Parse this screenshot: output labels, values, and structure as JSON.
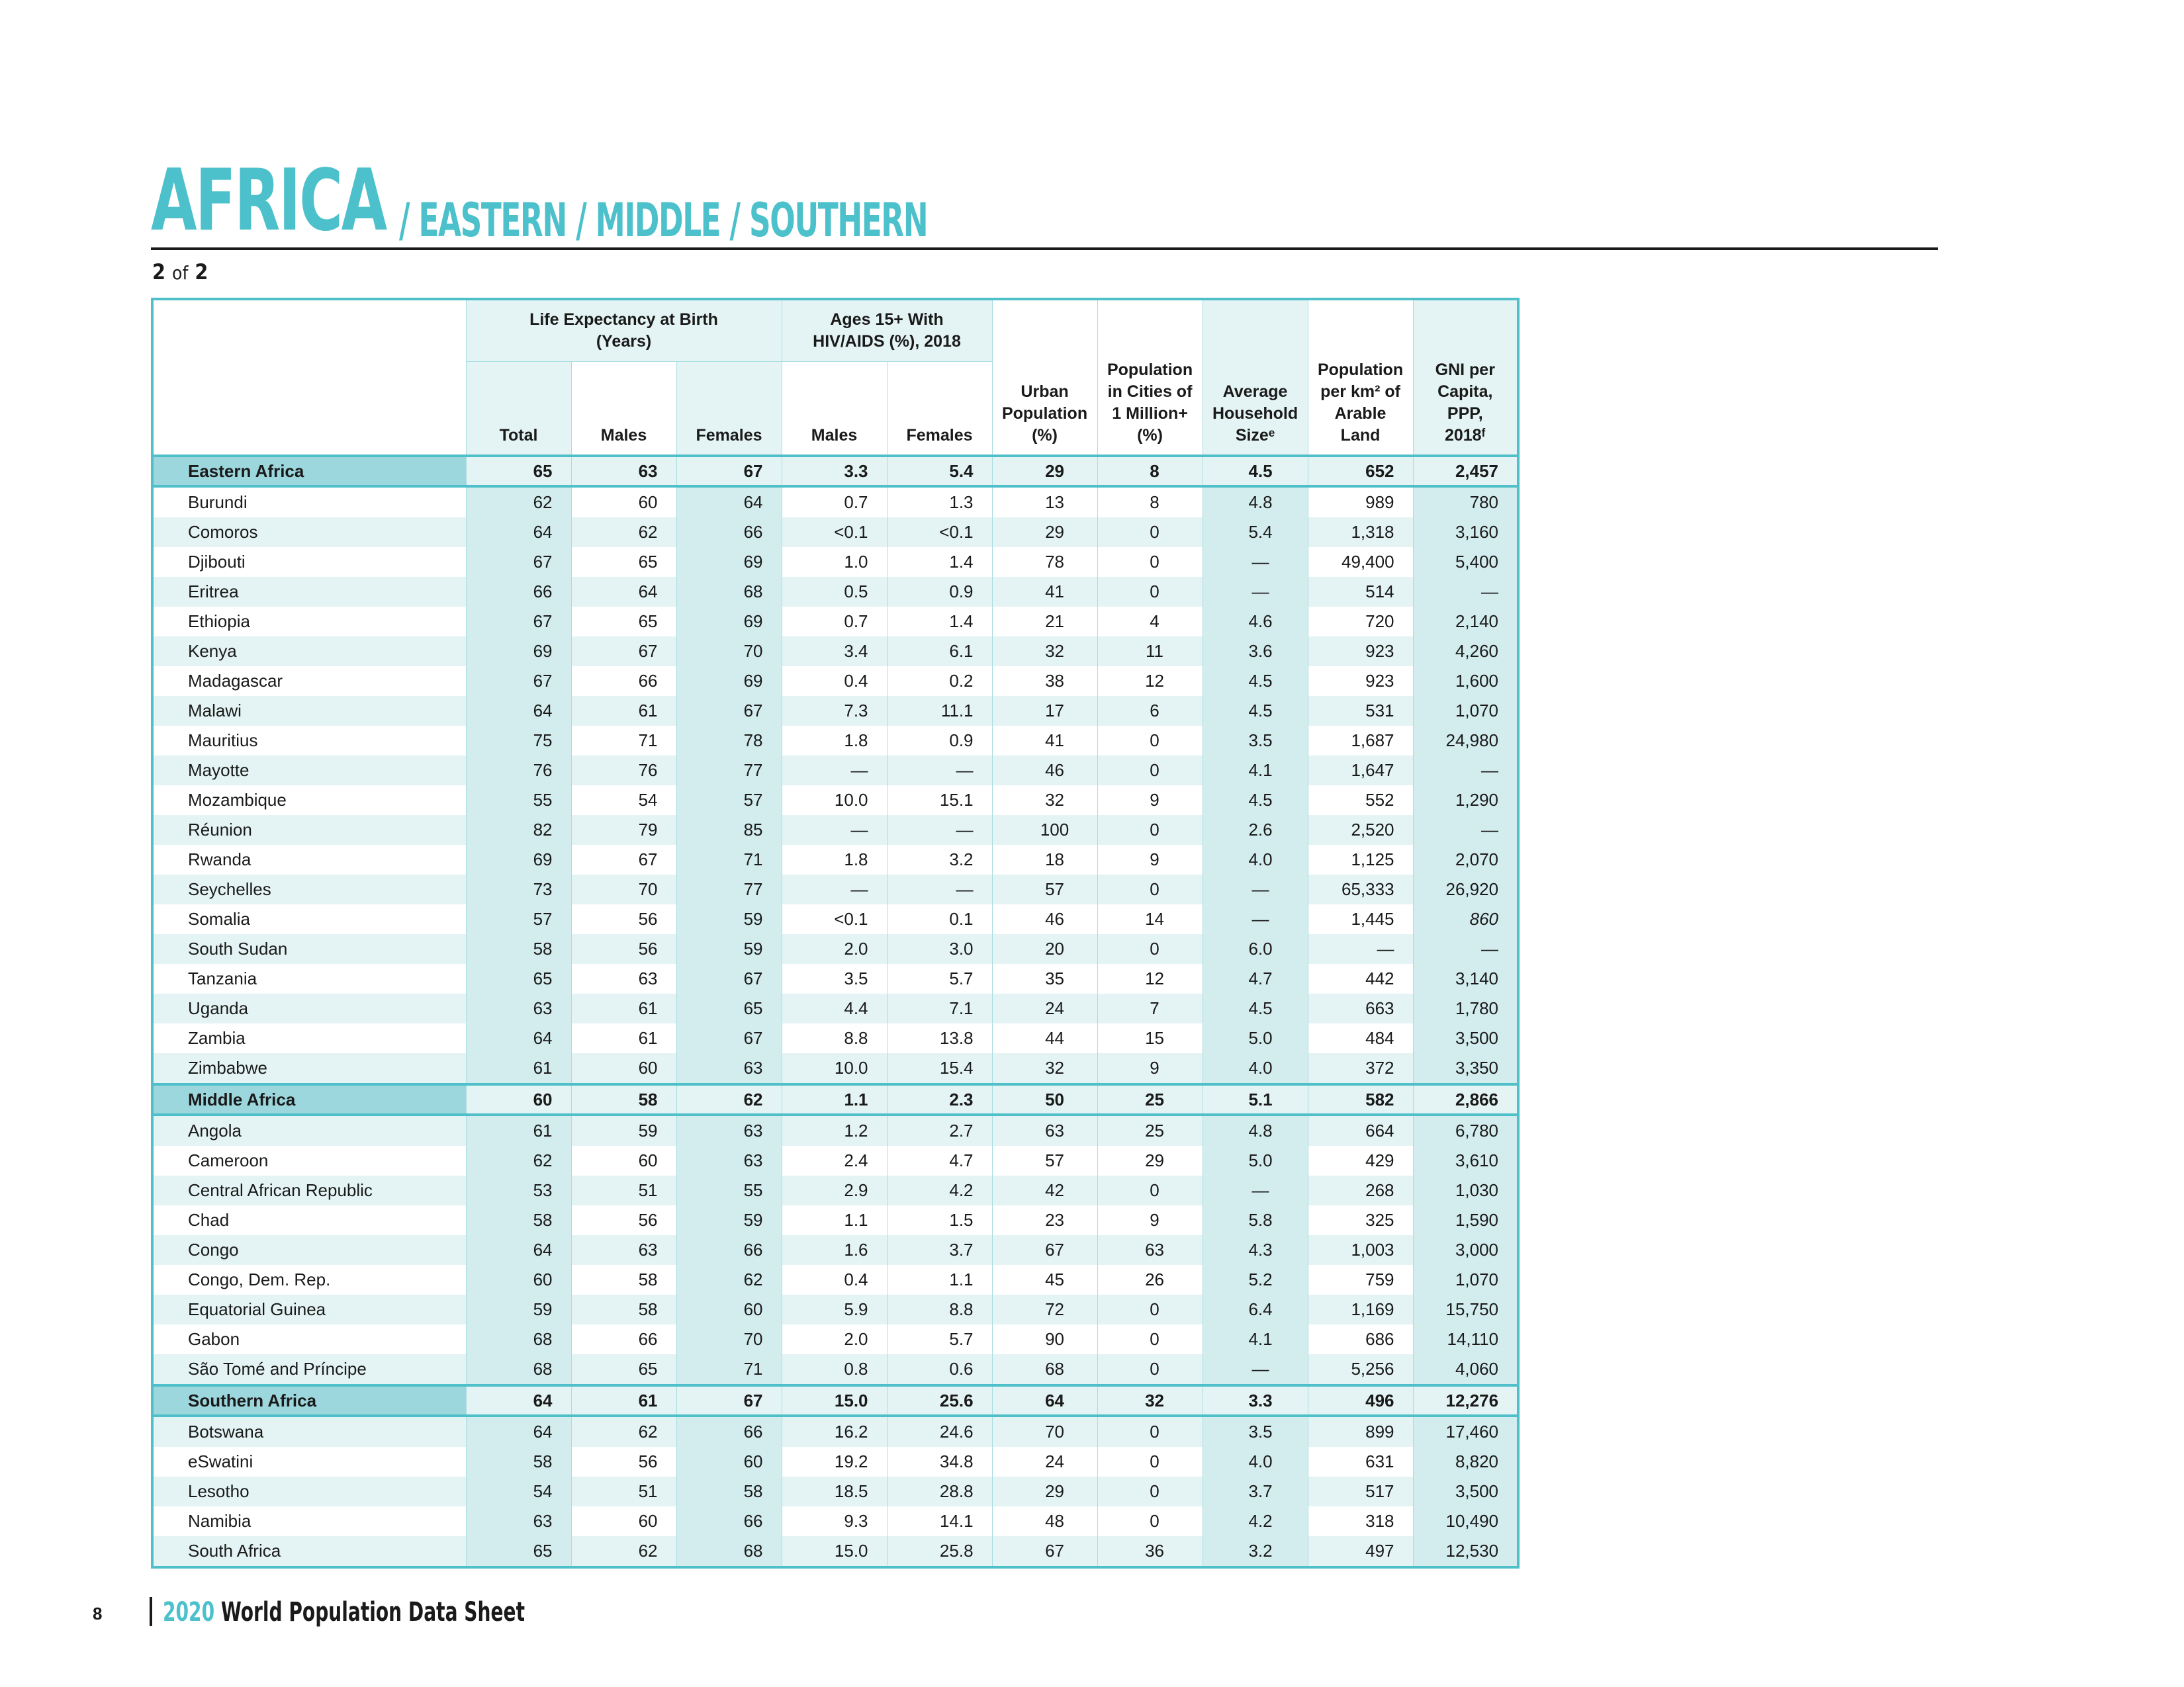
{
  "header": {
    "title_main": "AFRICA",
    "title_sub": "/ EASTERN / MIDDLE / SOUTHERN",
    "page_current": "2",
    "page_of": "of",
    "page_total": "2"
  },
  "table": {
    "group_headers": {
      "life_expectancy": "Life Expectancy at Birth (Years)",
      "hiv": "Ages 15+ With HIV/AIDS (%), 2018"
    },
    "columns": {
      "le_total": "Total",
      "le_males": "Males",
      "le_females": "Females",
      "hiv_males": "Males",
      "hiv_females": "Females",
      "urban": "Urban Population (%)",
      "cities": "Population in Cities of 1 Million+ (%)",
      "household": "Average Household Sizeᵉ",
      "density": "Population per km² of Arable Land",
      "gni": "GNI per Capita, PPP, 2018ᶠ"
    },
    "rows": [
      {
        "type": "region",
        "name": "Eastern Africa",
        "values": [
          "65",
          "63",
          "67",
          "3.3",
          "5.4",
          "29",
          "8",
          "4.5",
          "652",
          "2,457"
        ]
      },
      {
        "type": "country",
        "name": "Burundi",
        "values": [
          "62",
          "60",
          "64",
          "0.7",
          "1.3",
          "13",
          "8",
          "4.8",
          "989",
          "780"
        ]
      },
      {
        "type": "country",
        "name": "Comoros",
        "values": [
          "64",
          "62",
          "66",
          "<0.1",
          "<0.1",
          "29",
          "0",
          "5.4",
          "1,318",
          "3,160"
        ]
      },
      {
        "type": "country",
        "name": "Djibouti",
        "values": [
          "67",
          "65",
          "69",
          "1.0",
          "1.4",
          "78",
          "0",
          "—",
          "49,400",
          "5,400"
        ]
      },
      {
        "type": "country",
        "name": "Eritrea",
        "values": [
          "66",
          "64",
          "68",
          "0.5",
          "0.9",
          "41",
          "0",
          "—",
          "514",
          "—"
        ]
      },
      {
        "type": "country",
        "name": "Ethiopia",
        "values": [
          "67",
          "65",
          "69",
          "0.7",
          "1.4",
          "21",
          "4",
          "4.6",
          "720",
          "2,140"
        ]
      },
      {
        "type": "country",
        "name": "Kenya",
        "values": [
          "69",
          "67",
          "70",
          "3.4",
          "6.1",
          "32",
          "11",
          "3.6",
          "923",
          "4,260"
        ]
      },
      {
        "type": "country",
        "name": "Madagascar",
        "values": [
          "67",
          "66",
          "69",
          "0.4",
          "0.2",
          "38",
          "12",
          "4.5",
          "923",
          "1,600"
        ]
      },
      {
        "type": "country",
        "name": "Malawi",
        "values": [
          "64",
          "61",
          "67",
          "7.3",
          "11.1",
          "17",
          "6",
          "4.5",
          "531",
          "1,070"
        ]
      },
      {
        "type": "country",
        "name": "Mauritius",
        "values": [
          "75",
          "71",
          "78",
          "1.8",
          "0.9",
          "41",
          "0",
          "3.5",
          "1,687",
          "24,980"
        ]
      },
      {
        "type": "country",
        "name": "Mayotte",
        "values": [
          "76",
          "76",
          "77",
          "—",
          "—",
          "46",
          "0",
          "4.1",
          "1,647",
          "—"
        ]
      },
      {
        "type": "country",
        "name": "Mozambique",
        "values": [
          "55",
          "54",
          "57",
          "10.0",
          "15.1",
          "32",
          "9",
          "4.5",
          "552",
          "1,290"
        ]
      },
      {
        "type": "country",
        "name": "Réunion",
        "values": [
          "82",
          "79",
          "85",
          "—",
          "—",
          "100",
          "0",
          "2.6",
          "2,520",
          "—"
        ]
      },
      {
        "type": "country",
        "name": "Rwanda",
        "values": [
          "69",
          "67",
          "71",
          "1.8",
          "3.2",
          "18",
          "9",
          "4.0",
          "1,125",
          "2,070"
        ]
      },
      {
        "type": "country",
        "name": "Seychelles",
        "values": [
          "73",
          "70",
          "77",
          "—",
          "—",
          "57",
          "0",
          "—",
          "65,333",
          "26,920"
        ]
      },
      {
        "type": "country",
        "name": "Somalia",
        "values": [
          "57",
          "56",
          "59",
          "<0.1",
          "0.1",
          "46",
          "14",
          "—",
          "1,445",
          "860"
        ],
        "italic_gni": true
      },
      {
        "type": "country",
        "name": "South Sudan",
        "values": [
          "58",
          "56",
          "59",
          "2.0",
          "3.0",
          "20",
          "0",
          "6.0",
          "—",
          "—"
        ]
      },
      {
        "type": "country",
        "name": "Tanzania",
        "values": [
          "65",
          "63",
          "67",
          "3.5",
          "5.7",
          "35",
          "12",
          "4.7",
          "442",
          "3,140"
        ]
      },
      {
        "type": "country",
        "name": "Uganda",
        "values": [
          "63",
          "61",
          "65",
          "4.4",
          "7.1",
          "24",
          "7",
          "4.5",
          "663",
          "1,780"
        ]
      },
      {
        "type": "country",
        "name": "Zambia",
        "values": [
          "64",
          "61",
          "67",
          "8.8",
          "13.8",
          "44",
          "15",
          "5.0",
          "484",
          "3,500"
        ]
      },
      {
        "type": "country",
        "name": "Zimbabwe",
        "values": [
          "61",
          "60",
          "63",
          "10.0",
          "15.4",
          "32",
          "9",
          "4.0",
          "372",
          "3,350"
        ]
      },
      {
        "type": "region",
        "name": "Middle Africa",
        "values": [
          "60",
          "58",
          "62",
          "1.1",
          "2.3",
          "50",
          "25",
          "5.1",
          "582",
          "2,866"
        ]
      },
      {
        "type": "country",
        "name": "Angola",
        "values": [
          "61",
          "59",
          "63",
          "1.2",
          "2.7",
          "63",
          "25",
          "4.8",
          "664",
          "6,780"
        ]
      },
      {
        "type": "country",
        "name": "Cameroon",
        "values": [
          "62",
          "60",
          "63",
          "2.4",
          "4.7",
          "57",
          "29",
          "5.0",
          "429",
          "3,610"
        ]
      },
      {
        "type": "country",
        "name": "Central African Republic",
        "values": [
          "53",
          "51",
          "55",
          "2.9",
          "4.2",
          "42",
          "0",
          "—",
          "268",
          "1,030"
        ]
      },
      {
        "type": "country",
        "name": "Chad",
        "values": [
          "58",
          "56",
          "59",
          "1.1",
          "1.5",
          "23",
          "9",
          "5.8",
          "325",
          "1,590"
        ]
      },
      {
        "type": "country",
        "name": "Congo",
        "values": [
          "64",
          "63",
          "66",
          "1.6",
          "3.7",
          "67",
          "63",
          "4.3",
          "1,003",
          "3,000"
        ]
      },
      {
        "type": "country",
        "name": "Congo, Dem. Rep.",
        "values": [
          "60",
          "58",
          "62",
          "0.4",
          "1.1",
          "45",
          "26",
          "5.2",
          "759",
          "1,070"
        ]
      },
      {
        "type": "country",
        "name": "Equatorial Guinea",
        "values": [
          "59",
          "58",
          "60",
          "5.9",
          "8.8",
          "72",
          "0",
          "6.4",
          "1,169",
          "15,750"
        ]
      },
      {
        "type": "country",
        "name": "Gabon",
        "values": [
          "68",
          "66",
          "70",
          "2.0",
          "5.7",
          "90",
          "0",
          "4.1",
          "686",
          "14,110"
        ]
      },
      {
        "type": "country",
        "name": "São Tomé and Príncipe",
        "values": [
          "68",
          "65",
          "71",
          "0.8",
          "0.6",
          "68",
          "0",
          "—",
          "5,256",
          "4,060"
        ]
      },
      {
        "type": "region",
        "name": "Southern Africa",
        "values": [
          "64",
          "61",
          "67",
          "15.0",
          "25.6",
          "64",
          "32",
          "3.3",
          "496",
          "12,276"
        ]
      },
      {
        "type": "country",
        "name": "Botswana",
        "values": [
          "64",
          "62",
          "66",
          "16.2",
          "24.6",
          "70",
          "0",
          "3.5",
          "899",
          "17,460"
        ]
      },
      {
        "type": "country",
        "name": "eSwatini",
        "values": [
          "58",
          "56",
          "60",
          "19.2",
          "34.8",
          "24",
          "0",
          "4.0",
          "631",
          "8,820"
        ]
      },
      {
        "type": "country",
        "name": "Lesotho",
        "values": [
          "54",
          "51",
          "58",
          "18.5",
          "28.8",
          "29",
          "0",
          "3.7",
          "517",
          "3,500"
        ]
      },
      {
        "type": "country",
        "name": "Namibia",
        "values": [
          "63",
          "60",
          "66",
          "9.3",
          "14.1",
          "48",
          "0",
          "4.2",
          "318",
          "10,490"
        ]
      },
      {
        "type": "country",
        "name": "South Africa",
        "values": [
          "65",
          "62",
          "68",
          "15.0",
          "25.8",
          "67",
          "36",
          "3.2",
          "497",
          "12,530"
        ]
      }
    ]
  },
  "footer": {
    "page_number": "8",
    "year": "2020",
    "publication": " World Population Data Sheet"
  },
  "colors": {
    "accent": "#4cc1cb",
    "row_tint": "#e4f3f3",
    "region_label": "#9dd7de"
  }
}
